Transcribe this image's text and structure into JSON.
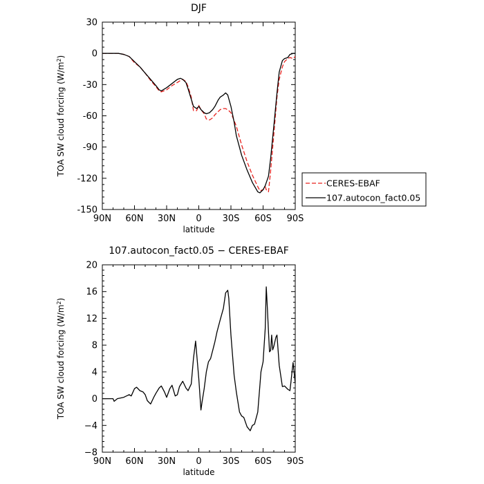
{
  "chart_data": [
    {
      "type": "line",
      "title": "DJF",
      "xlabel": "latitude",
      "ylabel_main": "TOA SW cloud forcing (W/m",
      "ylabel_sup": "2",
      "ylabel_close": ")",
      "xlim": [
        90,
        -90
      ],
      "ylim": [
        -150,
        30
      ],
      "x_ticks": [
        90,
        60,
        30,
        0,
        -30,
        -60,
        -90
      ],
      "x_tick_labels": [
        "90N",
        "60N",
        "30N",
        "0",
        "30S",
        "60S",
        "90S"
      ],
      "y_ticks": [
        30,
        0,
        -30,
        -60,
        -90,
        -120,
        -150
      ],
      "y_tick_labels": [
        "30",
        "0",
        "-30",
        "-60",
        "-90",
        "-120",
        "-150"
      ],
      "legend": [
        {
          "name": "CERES-EBAF",
          "color": "#e8201c",
          "dash": "dashed"
        },
        {
          "name": "107.autocon_fact0.05",
          "color": "#000000",
          "dash": "solid"
        }
      ],
      "legend_position": "right",
      "series": [
        {
          "name": "CERES-EBAF",
          "color": "#e8201c",
          "x": [
            90,
            80,
            75,
            70,
            65,
            60,
            55,
            50,
            45,
            40,
            37,
            35,
            30,
            25,
            20,
            17,
            15,
            12,
            10,
            7,
            5,
            2,
            0,
            -2,
            -5,
            -7,
            -10,
            -13,
            -15,
            -20,
            -23,
            -25,
            -28,
            -30,
            -35,
            -40,
            -45,
            -50,
            -55,
            -57,
            -60,
            -62,
            -63,
            -65,
            -67,
            -70,
            -73,
            -75,
            -78,
            -80,
            -83,
            -85,
            -88,
            -90
          ],
          "y": [
            0,
            0,
            0,
            -1,
            -3,
            -9,
            -13,
            -19,
            -26,
            -32,
            -36,
            -37,
            -35,
            -31,
            -28,
            -26,
            -25,
            -27,
            -32,
            -42,
            -55,
            -55,
            -50,
            -54,
            -58,
            -63,
            -64,
            -62,
            -59,
            -54,
            -53,
            -53,
            -55,
            -57,
            -70,
            -88,
            -104,
            -117,
            -128,
            -132,
            -131,
            -128,
            -131,
            -133,
            -113,
            -78,
            -42,
            -25,
            -13,
            -8,
            -5,
            -4,
            -5,
            -3
          ]
        },
        {
          "name": "107.autocon_fact0.05",
          "color": "#000000",
          "x": [
            90,
            80,
            75,
            70,
            65,
            60,
            55,
            50,
            45,
            40,
            37,
            35,
            30,
            25,
            20,
            17,
            15,
            12,
            10,
            7,
            5,
            2,
            0,
            -2,
            -5,
            -7,
            -10,
            -13,
            -15,
            -18,
            -20,
            -23,
            -25,
            -27,
            -30,
            -33,
            -35,
            -40,
            -45,
            -50,
            -55,
            -57,
            -60,
            -62,
            -65,
            -67,
            -70,
            -73,
            -75,
            -78,
            -80,
            -83,
            -85,
            -88,
            -90
          ],
          "y": [
            0,
            0,
            0,
            -1,
            -3,
            -8,
            -13,
            -19,
            -25,
            -31,
            -35,
            -36,
            -33,
            -29,
            -25,
            -24,
            -25,
            -28,
            -34,
            -44,
            -51,
            -53,
            -51,
            -54,
            -57,
            -58,
            -57,
            -54,
            -51,
            -45,
            -42,
            -40,
            -38,
            -40,
            -51,
            -66,
            -79,
            -98,
            -112,
            -124,
            -133,
            -134,
            -131,
            -127,
            -118,
            -101,
            -70,
            -38,
            -18,
            -7,
            -5,
            -4,
            -1,
            0,
            0
          ]
        }
      ]
    },
    {
      "type": "line",
      "title": "107.autocon_fact0.05 − CERES-EBAF",
      "xlabel": "latitude",
      "ylabel_main": "TOA SW cloud forcing (W/m",
      "ylabel_sup": "2",
      "ylabel_close": ")",
      "xlim": [
        90,
        -90
      ],
      "ylim": [
        -8,
        20
      ],
      "x_ticks": [
        90,
        60,
        30,
        0,
        -30,
        -60,
        -90
      ],
      "x_tick_labels": [
        "90N",
        "60N",
        "30N",
        "0",
        "30S",
        "60S",
        "90S"
      ],
      "y_ticks": [
        20,
        16,
        12,
        8,
        4,
        0,
        -4,
        -8
      ],
      "y_tick_labels": [
        "20",
        "16",
        "12",
        "8",
        "4",
        "0",
        "−4",
        "−8"
      ],
      "series": [
        {
          "name": "",
          "color": "#000000",
          "x": [
            90,
            80,
            79,
            76,
            70,
            65,
            63,
            60,
            58,
            55,
            52,
            50,
            48,
            45,
            42,
            40,
            37,
            35,
            32,
            30,
            27,
            25,
            22,
            20,
            18,
            15,
            12,
            10,
            7,
            5,
            3,
            0,
            -2,
            -3,
            -5,
            -7,
            -9,
            -11,
            -13,
            -15,
            -17,
            -20,
            -23,
            -25,
            -27,
            -28,
            -30,
            -33,
            -35,
            -38,
            -40,
            -42,
            -45,
            -48,
            -50,
            -52,
            -55,
            -57,
            -58,
            -60,
            -62,
            -63,
            -64,
            -65,
            -66,
            -67,
            -68,
            -69,
            -70,
            -72,
            -73,
            -75,
            -78,
            -80,
            -83,
            -85,
            -86,
            -87,
            -88,
            -90
          ],
          "y": [
            0,
            0,
            -0.4,
            0,
            0.2,
            0.6,
            0.4,
            1.5,
            1.7,
            1.2,
            1.0,
            0.6,
            -0.3,
            -0.8,
            0.2,
            0.8,
            1.6,
            1.9,
            1.0,
            0.2,
            1.5,
            2.0,
            0.4,
            0.6,
            1.8,
            2.6,
            1.6,
            1.2,
            2.2,
            6.0,
            8.6,
            3.0,
            -1.7,
            -0.6,
            1.5,
            4.0,
            5.5,
            6.0,
            7.2,
            8.5,
            10.0,
            11.8,
            13.5,
            15.8,
            16.2,
            15.0,
            9.5,
            3.5,
            1.0,
            -2.0,
            -2.6,
            -2.8,
            -4.2,
            -4.8,
            -4.0,
            -3.8,
            -2.0,
            2.0,
            4.0,
            5.5,
            10.5,
            16.7,
            13.5,
            10.0,
            7.0,
            7.2,
            9.5,
            7.3,
            7.8,
            9.2,
            9.5,
            5.0,
            1.8,
            1.9,
            1.4,
            1.2,
            2.5,
            4.0,
            5.4,
            2.3
          ]
        }
      ]
    }
  ]
}
